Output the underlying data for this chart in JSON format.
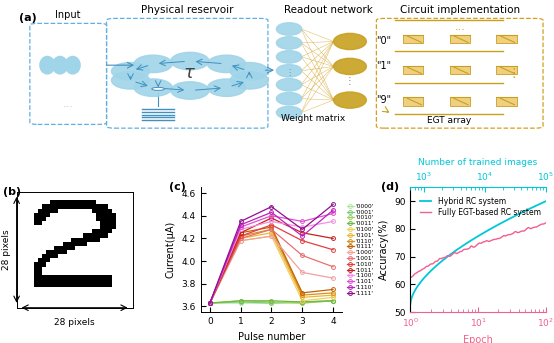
{
  "panel_a_label": "(a)",
  "panel_b_label": "(b)",
  "panel_c_label": "(c)",
  "panel_d_label": "(d)",
  "panel_c_xlabel": "Pulse number",
  "panel_c_ylabel": "Current(μA)",
  "panel_c_ylim": [
    3.55,
    4.65
  ],
  "panel_c_xlim": [
    -0.3,
    4.3
  ],
  "panel_c_xticks": [
    0,
    1,
    2,
    3,
    4
  ],
  "panel_c_yticks": [
    3.6,
    3.8,
    4.0,
    4.2,
    4.4,
    4.6
  ],
  "panel_c_legend_labels": [
    "'0000'",
    "'0001'",
    "'0010'",
    "'0011'",
    "'0100'",
    "'0101'",
    "'0110'",
    "'0111'",
    "'1000'",
    "'1001'",
    "'1010'",
    "'1011'",
    "'1100'",
    "'1101'",
    "'1110'",
    "'1111'"
  ],
  "panel_c_colors": [
    "#aee8a0",
    "#7dcc7d",
    "#a0d060",
    "#70b840",
    "#f0d060",
    "#e8b830",
    "#d89020",
    "#c86000",
    "#f0a0a0",
    "#e87070",
    "#e04040",
    "#c82020",
    "#f090e0",
    "#e050d0",
    "#c020c0",
    "#901090"
  ],
  "panel_d_xlabel": "Epoch",
  "panel_d_ylabel": "Accuracy(%)",
  "panel_d_ylim": [
    50,
    95
  ],
  "panel_d_yticks": [
    50,
    60,
    70,
    80,
    90
  ],
  "panel_d_top_xlabel": "Number of trained images",
  "panel_d_legend": [
    "Hybrid RC system",
    "Fully EGT-based RC system"
  ],
  "panel_d_line_colors": [
    "#00c8d8",
    "#f06090"
  ],
  "node_blue": "#a0d4e8",
  "node_blue_dark": "#6bb8d8",
  "arrow_blue": "#4090c0",
  "gold": "#c8a020",
  "gold_light": "#e8c840",
  "gold_dark": "#906000",
  "box_blue": "#60b0e0",
  "box_gold": "#d4a020"
}
